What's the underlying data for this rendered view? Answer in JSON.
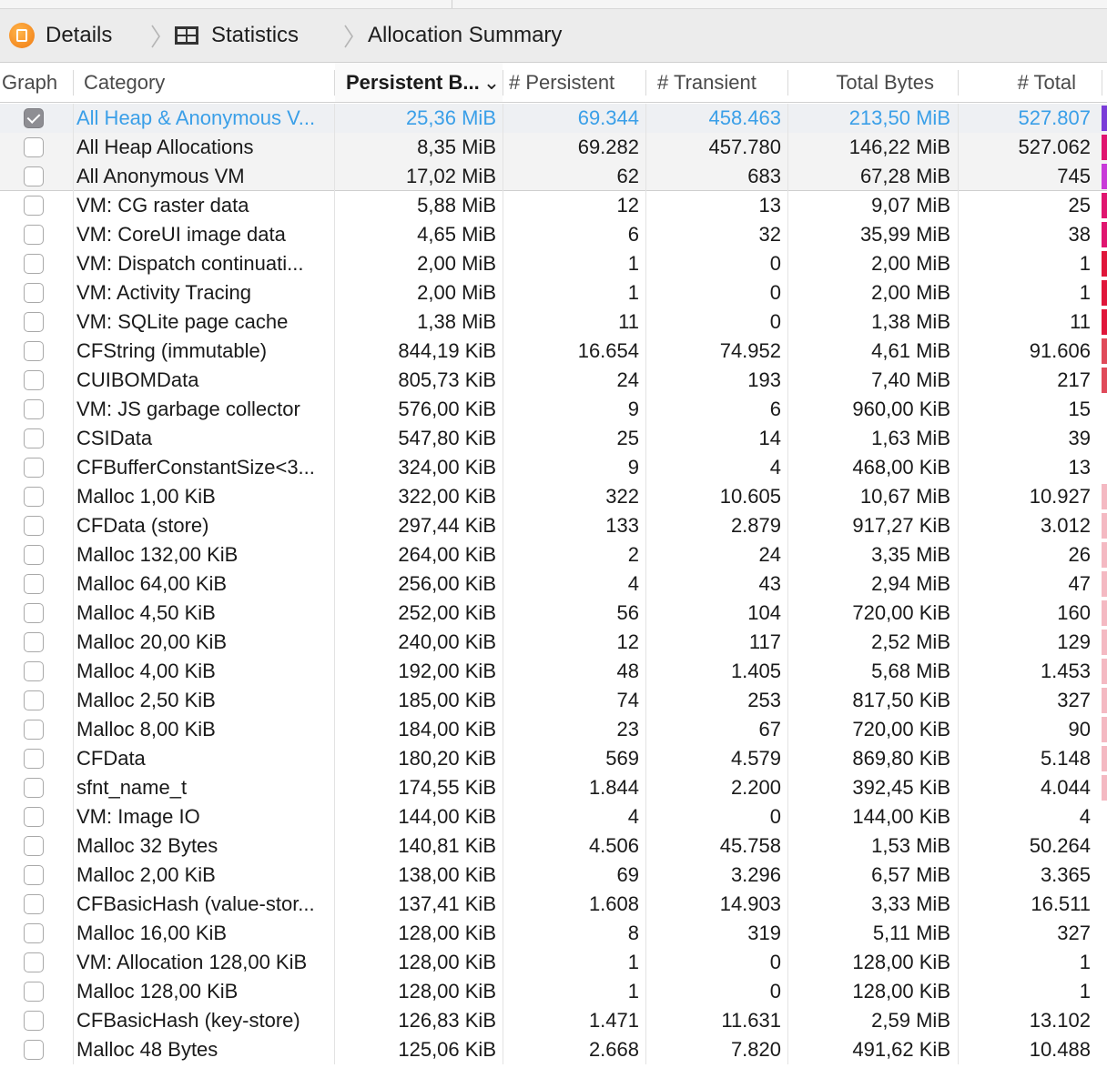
{
  "breadcrumb": {
    "items": [
      {
        "label": "Details",
        "icon": "instruments-app-icon"
      },
      {
        "label": "Statistics",
        "icon": "table-grid-icon"
      },
      {
        "label": "Allocation Summary",
        "icon": ""
      }
    ]
  },
  "table": {
    "columns": [
      {
        "label": "Graph"
      },
      {
        "label": "Category"
      },
      {
        "label": "Persistent B...",
        "sort": "descending"
      },
      {
        "label": "# Persistent"
      },
      {
        "label": "# Transient"
      },
      {
        "label": "Total Bytes"
      },
      {
        "label": "# Total"
      }
    ],
    "rows": [
      {
        "checked": true,
        "category": "All Heap & Anonymous V...",
        "persistent_bytes": "25,36 MiB",
        "persistent": "69.344",
        "transient": "458.463",
        "total_bytes": "213,50 MiB",
        "total": "527.807",
        "color": "#7a3cd8"
      },
      {
        "checked": false,
        "category": "All Heap Allocations",
        "persistent_bytes": "8,35 MiB",
        "persistent": "69.282",
        "transient": "457.780",
        "total_bytes": "146,22 MiB",
        "total": "527.062",
        "color": "#e0156f"
      },
      {
        "checked": false,
        "category": "All Anonymous VM",
        "persistent_bytes": "17,02 MiB",
        "persistent": "62",
        "transient": "683",
        "total_bytes": "67,28 MiB",
        "total": "745",
        "color": "#c83ad8"
      },
      {
        "checked": false,
        "category": "VM: CG raster data",
        "persistent_bytes": "5,88 MiB",
        "persistent": "12",
        "transient": "13",
        "total_bytes": "9,07 MiB",
        "total": "25",
        "color": "#e0156f"
      },
      {
        "checked": false,
        "category": "VM: CoreUI image data",
        "persistent_bytes": "4,65 MiB",
        "persistent": "6",
        "transient": "32",
        "total_bytes": "35,99 MiB",
        "total": "38",
        "color": "#e0156f"
      },
      {
        "checked": false,
        "category": "VM: Dispatch continuati...",
        "persistent_bytes": "2,00 MiB",
        "persistent": "1",
        "transient": "0",
        "total_bytes": "2,00 MiB",
        "total": "1",
        "color": "#e0163a"
      },
      {
        "checked": false,
        "category": "VM: Activity Tracing",
        "persistent_bytes": "2,00 MiB",
        "persistent": "1",
        "transient": "0",
        "total_bytes": "2,00 MiB",
        "total": "1",
        "color": "#e0163a"
      },
      {
        "checked": false,
        "category": "VM: SQLite page cache",
        "persistent_bytes": "1,38 MiB",
        "persistent": "11",
        "transient": "0",
        "total_bytes": "1,38 MiB",
        "total": "11",
        "color": "#e0163a"
      },
      {
        "checked": false,
        "category": "CFString (immutable)",
        "persistent_bytes": "844,19 KiB",
        "persistent": "16.654",
        "transient": "74.952",
        "total_bytes": "4,61 MiB",
        "total": "91.606",
        "color": "#e04a5a"
      },
      {
        "checked": false,
        "category": "CUIBOMData",
        "persistent_bytes": "805,73 KiB",
        "persistent": "24",
        "transient": "193",
        "total_bytes": "7,40 MiB",
        "total": "217",
        "color": "#e04a5a"
      },
      {
        "checked": false,
        "category": "VM: JS garbage collector",
        "persistent_bytes": "576,00 KiB",
        "persistent": "9",
        "transient": "6",
        "total_bytes": "960,00 KiB",
        "total": "15",
        "color": ""
      },
      {
        "checked": false,
        "category": "CSIData",
        "persistent_bytes": "547,80 KiB",
        "persistent": "25",
        "transient": "14",
        "total_bytes": "1,63 MiB",
        "total": "39",
        "color": ""
      },
      {
        "checked": false,
        "category": "CFBufferConstantSize<3...",
        "persistent_bytes": "324,00 KiB",
        "persistent": "9",
        "transient": "4",
        "total_bytes": "468,00 KiB",
        "total": "13",
        "color": ""
      },
      {
        "checked": false,
        "category": "Malloc 1,00 KiB",
        "persistent_bytes": "322,00 KiB",
        "persistent": "322",
        "transient": "10.605",
        "total_bytes": "10,67 MiB",
        "total": "10.927",
        "color": "#f4b9c2"
      },
      {
        "checked": false,
        "category": "CFData (store)",
        "persistent_bytes": "297,44 KiB",
        "persistent": "133",
        "transient": "2.879",
        "total_bytes": "917,27 KiB",
        "total": "3.012",
        "color": "#f4b9c2"
      },
      {
        "checked": false,
        "category": "Malloc 132,00 KiB",
        "persistent_bytes": "264,00 KiB",
        "persistent": "2",
        "transient": "24",
        "total_bytes": "3,35 MiB",
        "total": "26",
        "color": "#f4b9c2"
      },
      {
        "checked": false,
        "category": "Malloc 64,00 KiB",
        "persistent_bytes": "256,00 KiB",
        "persistent": "4",
        "transient": "43",
        "total_bytes": "2,94 MiB",
        "total": "47",
        "color": "#f4b9c2"
      },
      {
        "checked": false,
        "category": "Malloc 4,50 KiB",
        "persistent_bytes": "252,00 KiB",
        "persistent": "56",
        "transient": "104",
        "total_bytes": "720,00 KiB",
        "total": "160",
        "color": "#f4b9c2"
      },
      {
        "checked": false,
        "category": "Malloc 20,00 KiB",
        "persistent_bytes": "240,00 KiB",
        "persistent": "12",
        "transient": "117",
        "total_bytes": "2,52 MiB",
        "total": "129",
        "color": "#f4b9c2"
      },
      {
        "checked": false,
        "category": "Malloc 4,00 KiB",
        "persistent_bytes": "192,00 KiB",
        "persistent": "48",
        "transient": "1.405",
        "total_bytes": "5,68 MiB",
        "total": "1.453",
        "color": "#f4b9c2"
      },
      {
        "checked": false,
        "category": "Malloc 2,50 KiB",
        "persistent_bytes": "185,00 KiB",
        "persistent": "74",
        "transient": "253",
        "total_bytes": "817,50 KiB",
        "total": "327",
        "color": "#f4b9c2"
      },
      {
        "checked": false,
        "category": "Malloc 8,00 KiB",
        "persistent_bytes": "184,00 KiB",
        "persistent": "23",
        "transient": "67",
        "total_bytes": "720,00 KiB",
        "total": "90",
        "color": "#f4b9c2"
      },
      {
        "checked": false,
        "category": "CFData",
        "persistent_bytes": "180,20 KiB",
        "persistent": "569",
        "transient": "4.579",
        "total_bytes": "869,80 KiB",
        "total": "5.148",
        "color": "#f4b9c2"
      },
      {
        "checked": false,
        "category": "sfnt_name_t",
        "persistent_bytes": "174,55 KiB",
        "persistent": "1.844",
        "transient": "2.200",
        "total_bytes": "392,45 KiB",
        "total": "4.044",
        "color": "#f4b9c2"
      },
      {
        "checked": false,
        "category": "VM: Image IO",
        "persistent_bytes": "144,00 KiB",
        "persistent": "4",
        "transient": "0",
        "total_bytes": "144,00 KiB",
        "total": "4",
        "color": ""
      },
      {
        "checked": false,
        "category": "Malloc 32 Bytes",
        "persistent_bytes": "140,81 KiB",
        "persistent": "4.506",
        "transient": "45.758",
        "total_bytes": "1,53 MiB",
        "total": "50.264",
        "color": ""
      },
      {
        "checked": false,
        "category": "Malloc 2,00 KiB",
        "persistent_bytes": "138,00 KiB",
        "persistent": "69",
        "transient": "3.296",
        "total_bytes": "6,57 MiB",
        "total": "3.365",
        "color": ""
      },
      {
        "checked": false,
        "category": "CFBasicHash (value-stor...",
        "persistent_bytes": "137,41 KiB",
        "persistent": "1.608",
        "transient": "14.903",
        "total_bytes": "3,33 MiB",
        "total": "16.511",
        "color": ""
      },
      {
        "checked": false,
        "category": "Malloc 16,00 KiB",
        "persistent_bytes": "128,00 KiB",
        "persistent": "8",
        "transient": "319",
        "total_bytes": "5,11 MiB",
        "total": "327",
        "color": ""
      },
      {
        "checked": false,
        "category": "VM: Allocation 128,00 KiB",
        "persistent_bytes": "128,00 KiB",
        "persistent": "1",
        "transient": "0",
        "total_bytes": "128,00 KiB",
        "total": "1",
        "color": ""
      },
      {
        "checked": false,
        "category": "Malloc 128,00 KiB",
        "persistent_bytes": "128,00 KiB",
        "persistent": "1",
        "transient": "0",
        "total_bytes": "128,00 KiB",
        "total": "1",
        "color": ""
      },
      {
        "checked": false,
        "category": "CFBasicHash (key-store)",
        "persistent_bytes": "126,83 KiB",
        "persistent": "1.471",
        "transient": "11.631",
        "total_bytes": "2,59 MiB",
        "total": "13.102",
        "color": ""
      },
      {
        "checked": false,
        "category": "Malloc 48 Bytes",
        "persistent_bytes": "125,06 KiB",
        "persistent": "2.668",
        "transient": "7.820",
        "total_bytes": "491,62 KiB",
        "total": "10.488",
        "color": ""
      }
    ]
  }
}
